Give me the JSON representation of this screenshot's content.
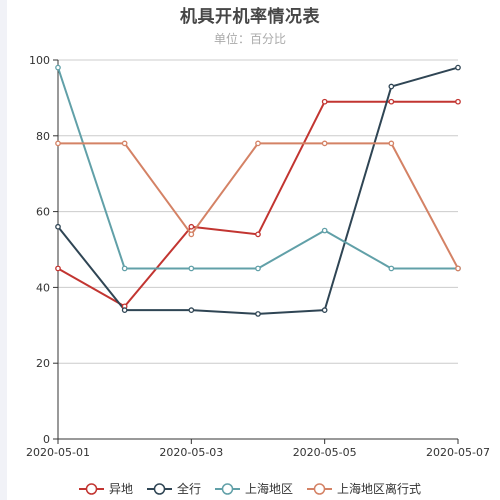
{
  "title": "机具开机率情况表",
  "subtitle": "单位：百分比",
  "chart_data": {
    "type": "line",
    "title": "机具开机率情况表",
    "subtitle": "单位：百分比",
    "x": [
      "2020-05-01",
      "2020-05-02",
      "2020-05-03",
      "2020-05-04",
      "2020-05-05",
      "2020-05-06",
      "2020-05-07"
    ],
    "x_tick_labels": [
      "2020-05-01",
      "2020-05-03",
      "2020-05-05",
      "2020-05-07"
    ],
    "ylim": [
      0,
      100
    ],
    "y_ticks": [
      0,
      20,
      40,
      60,
      80,
      100
    ],
    "grid": true,
    "legend_position": "bottom",
    "series": [
      {
        "name": "异地",
        "color": "#c23531",
        "values": [
          45,
          35,
          56,
          54,
          89,
          89,
          89
        ]
      },
      {
        "name": "全行",
        "color": "#2f4554",
        "values": [
          56,
          34,
          34,
          33,
          34,
          93,
          98
        ]
      },
      {
        "name": "上海地区",
        "color": "#61a0a8",
        "values": [
          98,
          45,
          45,
          45,
          55,
          45,
          45
        ]
      },
      {
        "name": "上海地区离行式",
        "color": "#d48265",
        "values": [
          78,
          78,
          54,
          78,
          78,
          78,
          45
        ]
      }
    ]
  }
}
